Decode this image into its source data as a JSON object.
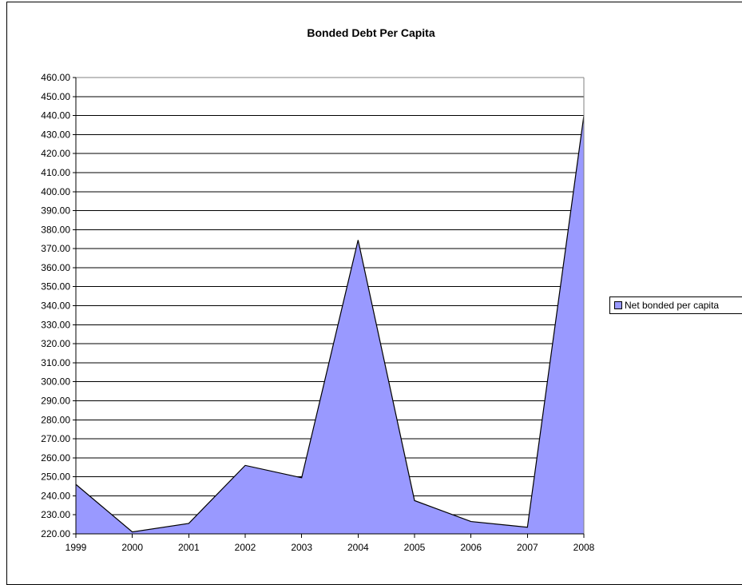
{
  "chart_data": {
    "type": "area",
    "title": "Bonded Debt Per Capita",
    "xlabel": "",
    "ylabel": "",
    "categories": [
      "1999",
      "2000",
      "2001",
      "2002",
      "2003",
      "2004",
      "2005",
      "2006",
      "2007",
      "2008"
    ],
    "series": [
      {
        "name": "Net bonded per capita",
        "values": [
          246.0,
          221.0,
          225.5,
          256.0,
          249.5,
          374.5,
          237.5,
          226.5,
          223.5,
          440.0
        ]
      }
    ],
    "ylim": [
      220,
      460
    ],
    "ytick_step": 10,
    "ytick_labels": [
      "220.00",
      "230.00",
      "240.00",
      "250.00",
      "260.00",
      "270.00",
      "280.00",
      "290.00",
      "300.00",
      "310.00",
      "320.00",
      "330.00",
      "340.00",
      "350.00",
      "360.00",
      "370.00",
      "380.00",
      "390.00",
      "400.00",
      "410.00",
      "420.00",
      "430.00",
      "440.00",
      "450.00",
      "460.00"
    ],
    "grid": true,
    "legend_position": "right",
    "colors": {
      "fill": "#9999ff",
      "line": "#000000",
      "grid": "#000000"
    }
  }
}
